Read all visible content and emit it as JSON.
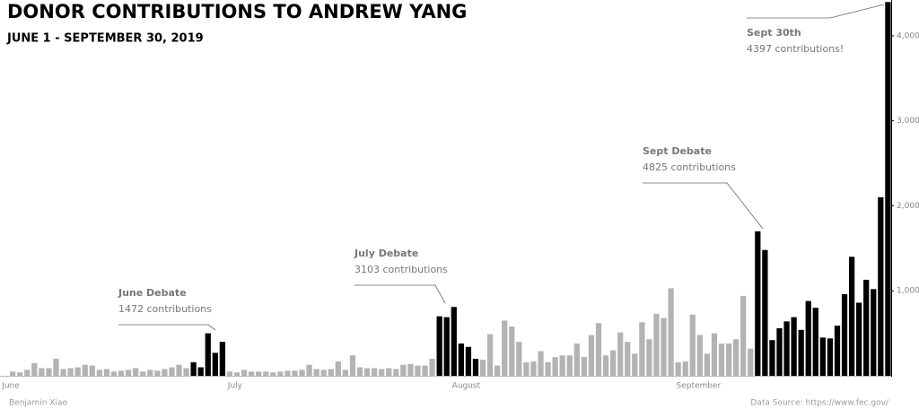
{
  "chart_data": {
    "type": "bar",
    "title": "DONOR CONTRIBUTIONS TO ANDREW YANG",
    "subtitle": "JUNE 1 - SEPTEMBER 30, 2019",
    "author": "Benjamin Xiao",
    "source": "Data Source: https://www.fec.gov/",
    "color": "#b3b3b3",
    "highlight_color": "#000000",
    "categories": [
      "June",
      null,
      null,
      null,
      null,
      null,
      null,
      null,
      null,
      null,
      null,
      null,
      null,
      null,
      null,
      null,
      null,
      null,
      null,
      null,
      null,
      null,
      null,
      null,
      null,
      null,
      null,
      null,
      null,
      null,
      "July",
      null,
      null,
      null,
      null,
      null,
      null,
      null,
      null,
      null,
      null,
      null,
      null,
      null,
      null,
      null,
      null,
      null,
      null,
      null,
      null,
      null,
      null,
      null,
      null,
      null,
      null,
      null,
      null,
      null,
      null,
      "August",
      null,
      null,
      null,
      null,
      null,
      null,
      null,
      null,
      null,
      null,
      null,
      null,
      null,
      null,
      null,
      null,
      null,
      null,
      null,
      null,
      null,
      null,
      null,
      null,
      null,
      null,
      null,
      null,
      null,
      null,
      "September",
      null,
      null,
      null,
      null,
      null,
      null,
      null,
      null,
      null,
      null,
      null,
      null,
      null,
      null,
      null,
      null,
      null,
      null,
      null,
      null,
      null,
      null,
      null,
      null,
      null,
      null,
      null,
      null,
      null
    ],
    "values": [
      50,
      40,
      70,
      150,
      90,
      90,
      200,
      80,
      90,
      100,
      130,
      120,
      70,
      80,
      50,
      60,
      70,
      90,
      50,
      70,
      60,
      80,
      100,
      130,
      90,
      160,
      100,
      500,
      270,
      400,
      50,
      40,
      70,
      50,
      50,
      50,
      40,
      50,
      60,
      60,
      70,
      130,
      80,
      70,
      80,
      170,
      70,
      240,
      100,
      90,
      90,
      80,
      90,
      80,
      130,
      140,
      120,
      120,
      200,
      700,
      690,
      810,
      380,
      340,
      200,
      190,
      490,
      120,
      650,
      580,
      400,
      160,
      170,
      290,
      160,
      220,
      240,
      240,
      380,
      220,
      480,
      620,
      240,
      300,
      510,
      400,
      260,
      630,
      430,
      730,
      680,
      1030,
      160,
      170,
      720,
      480,
      260,
      500,
      380,
      380,
      430,
      940,
      320,
      1700,
      1480,
      420,
      560,
      640,
      690,
      540,
      880,
      800,
      450,
      440,
      590,
      960,
      1400,
      860,
      1130,
      1020,
      2100,
      4397
    ],
    "highlighted": [
      false,
      false,
      false,
      false,
      false,
      false,
      false,
      false,
      false,
      false,
      false,
      false,
      false,
      false,
      false,
      false,
      false,
      false,
      false,
      false,
      false,
      false,
      false,
      false,
      false,
      true,
      true,
      true,
      true,
      true,
      false,
      false,
      false,
      false,
      false,
      false,
      false,
      false,
      false,
      false,
      false,
      false,
      false,
      false,
      false,
      false,
      false,
      false,
      false,
      false,
      false,
      false,
      false,
      false,
      false,
      false,
      false,
      false,
      false,
      true,
      true,
      true,
      true,
      true,
      true,
      false,
      false,
      false,
      false,
      false,
      false,
      false,
      false,
      false,
      false,
      false,
      false,
      false,
      false,
      false,
      false,
      false,
      false,
      false,
      false,
      false,
      false,
      false,
      false,
      false,
      false,
      false,
      false,
      false,
      false,
      false,
      false,
      false,
      false,
      false,
      false,
      false,
      false,
      true,
      true,
      true,
      true,
      true,
      true,
      true,
      true,
      true,
      true,
      true,
      true,
      true,
      true,
      true,
      true,
      true,
      true,
      true
    ],
    "ylim": [
      0,
      4400
    ],
    "yticks": [
      {
        "value": 1000,
        "label": "1,000"
      },
      {
        "value": 2000,
        "label": "2,000"
      },
      {
        "value": 3000,
        "label": "3,000"
      },
      {
        "value": 4000,
        "label": "4,000"
      }
    ],
    "annotations": [
      {
        "title": "June Debate",
        "text": "1472 contributions"
      },
      {
        "title": "July Debate",
        "text": "3103 contributions"
      },
      {
        "title": "Sept Debate",
        "text": "4825 contributions"
      },
      {
        "title": "Sept 30th",
        "text": "4397 contributions!"
      }
    ]
  }
}
